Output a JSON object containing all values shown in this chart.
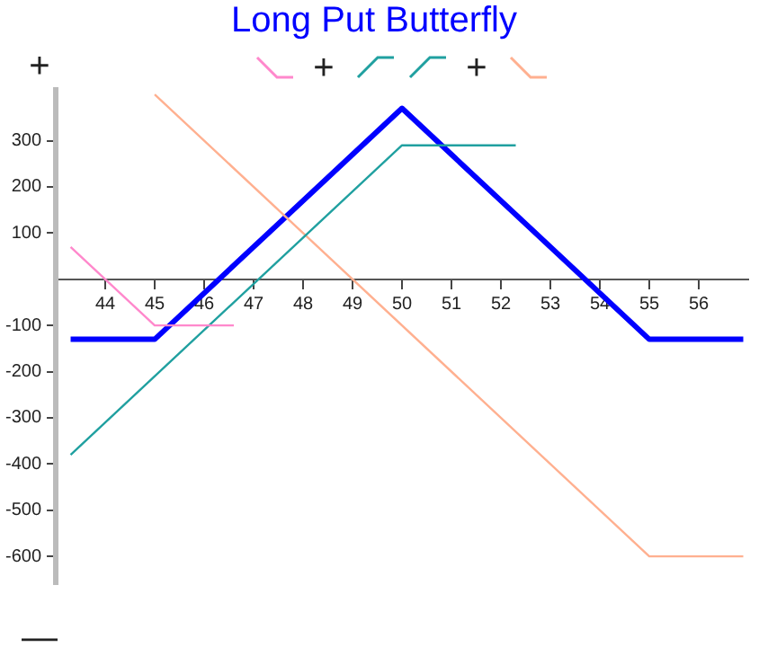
{
  "chart_data": {
    "type": "line",
    "title": "Long Put Butterfly",
    "series": [
      {
        "color": "#ff88cc",
        "x": [
          43.3,
          45,
          46.6
        ],
        "values": [
          70,
          -100,
          -100
        ]
      },
      {
        "color": "#20a0a0",
        "x": [
          43.3,
          50,
          52.3
        ],
        "values": [
          -380,
          290,
          290
        ]
      },
      {
        "color": "#ffb090",
        "x": [
          45,
          55,
          56.9
        ],
        "values": [
          400,
          -600,
          -600
        ]
      },
      {
        "color": "#0000ff",
        "x": [
          43.3,
          45,
          50,
          55,
          56.9
        ],
        "values": [
          -130,
          -130,
          370,
          -130,
          -130
        ]
      }
    ],
    "xlim": [
      43,
      57
    ],
    "xticks": [
      44,
      45,
      46,
      47,
      48,
      49,
      50,
      51,
      52,
      53,
      54,
      55,
      56
    ],
    "ylim": [
      -660,
      410
    ],
    "yticks": [
      -600,
      -500,
      -400,
      -300,
      -200,
      -100,
      100,
      200,
      300
    ],
    "annotations": [
      "+",
      "+",
      "+",
      "—"
    ],
    "grid": false,
    "legend": false,
    "marker": "none",
    "line_style": "solid"
  }
}
